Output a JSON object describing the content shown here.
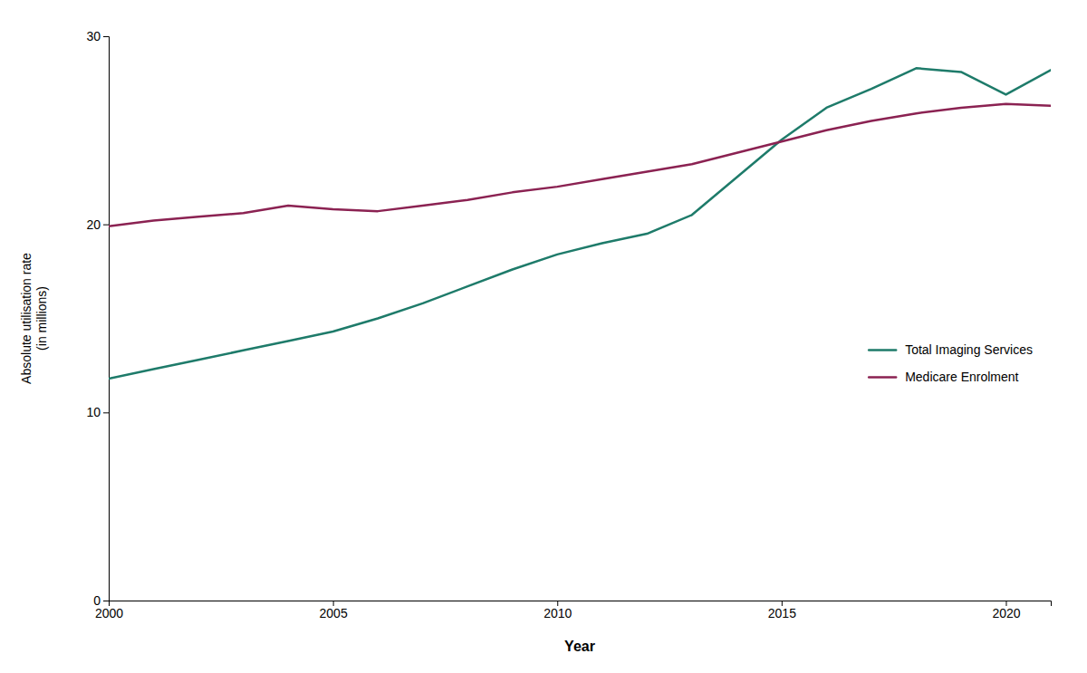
{
  "chart_data": {
    "type": "line",
    "xlabel": "Year",
    "ylabel": "Absolute utilisation rate\n(in millions)",
    "x": [
      2000,
      2001,
      2002,
      2003,
      2004,
      2005,
      2006,
      2007,
      2008,
      2009,
      2010,
      2011,
      2012,
      2013,
      2014,
      2015,
      2016,
      2017,
      2018,
      2019,
      2020,
      2021
    ],
    "series": [
      {
        "name": "Total Imaging Services",
        "color": "#1e7b6a",
        "values": [
          11.8,
          12.3,
          12.8,
          13.3,
          13.8,
          14.3,
          15.0,
          15.8,
          16.7,
          17.6,
          18.4,
          19.0,
          19.5,
          20.5,
          22.5,
          24.5,
          26.2,
          27.2,
          28.3,
          28.1,
          26.9,
          28.2
        ]
      },
      {
        "name": "Medicare Enrolment",
        "color": "#8b2252",
        "values": [
          19.9,
          20.2,
          20.4,
          20.6,
          21.0,
          20.8,
          20.7,
          21.0,
          21.3,
          21.7,
          22.0,
          22.4,
          22.8,
          23.2,
          23.8,
          24.4,
          25.0,
          25.5,
          25.9,
          26.2,
          26.4,
          26.3
        ]
      }
    ],
    "xlim": [
      2000,
      2021
    ],
    "ylim": [
      0,
      30
    ],
    "xticks": [
      2000,
      2005,
      2010,
      2015,
      2020
    ],
    "yticks": [
      0,
      10,
      20,
      30
    ],
    "grid": false,
    "legend": "right"
  }
}
